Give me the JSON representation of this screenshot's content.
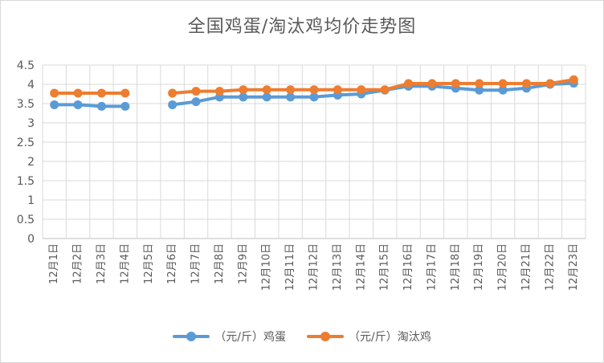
{
  "chart_data": {
    "type": "line",
    "title": "全国鸡蛋/淘汰鸡均价走势图",
    "categories": [
      "12月1日",
      "12月2日",
      "12月3日",
      "12月4日",
      "12月5日",
      "12月6日",
      "12月7日",
      "12月8日",
      "12月9日",
      "12月10日",
      "12月11日",
      "12月12日",
      "12月13日",
      "12月14日",
      "12月15日",
      "12月16日",
      "12月17日",
      "12月18日",
      "12月19日",
      "12月20日",
      "12月21日",
      "12月22日",
      "12月23日"
    ],
    "y_ticks": [
      "0",
      "0.5",
      "1",
      "1.5",
      "2",
      "2.5",
      "3",
      "3.5",
      "4",
      "4.5"
    ],
    "ylim": [
      0,
      4.5
    ],
    "grid": true,
    "legend_position": "bottom",
    "series": [
      {
        "name": "（元/斤）鸡蛋",
        "color": "#5b9bd5",
        "values": [
          3.47,
          3.47,
          3.43,
          3.43,
          null,
          3.47,
          3.55,
          3.67,
          3.67,
          3.67,
          3.67,
          3.67,
          3.72,
          3.75,
          3.85,
          3.95,
          3.95,
          3.9,
          3.85,
          3.85,
          3.9,
          4.0,
          4.03
        ]
      },
      {
        "name": "（元/斤）淘汰鸡",
        "color": "#ed7d31",
        "values": [
          3.77,
          3.77,
          3.77,
          3.77,
          null,
          3.77,
          3.82,
          3.82,
          3.86,
          3.86,
          3.86,
          3.86,
          3.86,
          3.86,
          3.86,
          4.02,
          4.02,
          4.02,
          4.02,
          4.02,
          4.02,
          4.02,
          4.12
        ]
      }
    ]
  }
}
